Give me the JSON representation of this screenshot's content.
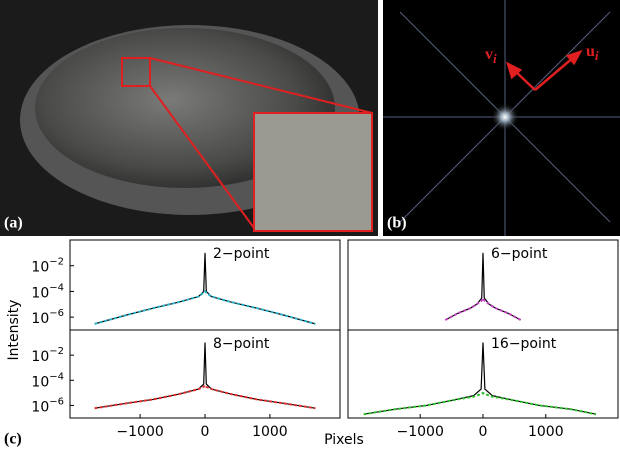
{
  "figure": {
    "panel_a": "(a)",
    "panel_b": "(b)",
    "panel_c": "(c)",
    "vector_v": "v",
    "vector_v_sub": "i",
    "vector_u": "u",
    "vector_u_sub": "i",
    "ylabel": "Intensity",
    "xlabel": "Pixels"
  },
  "chart_data": [
    {
      "type": "line",
      "title": "2−point",
      "log_y": true,
      "xlim": [
        -2080,
        2080
      ],
      "ylim": [
        1e-07,
        1
      ],
      "yticks": [
        {
          "value": 0.01,
          "label": "10",
          "exponent": "−2"
        },
        {
          "value": 0.0001,
          "label": "10",
          "exponent": "−4"
        },
        {
          "value": 1e-06,
          "label": "10",
          "exponent": "−6"
        }
      ],
      "x": [
        -1700,
        -1200,
        -800,
        -400,
        -100,
        -20,
        0,
        20,
        100,
        400,
        800,
        1200,
        1700
      ],
      "series": [
        {
          "color": "#000000",
          "values": [
            3e-07,
            1.5e-06,
            5e-06,
            1.5e-05,
            4e-05,
            0.0001,
            0.1,
            0.0001,
            4e-05,
            1.5e-05,
            5e-06,
            1.5e-06,
            3e-07
          ]
        },
        {
          "color": "#2ab0c8",
          "dashed": true,
          "values": [
            3e-07,
            1.5e-06,
            5e-06,
            1.5e-05,
            4e-05,
            8e-05,
            0.0001,
            8e-05,
            4e-05,
            1.5e-05,
            5e-06,
            1.5e-06,
            3e-07
          ]
        }
      ]
    },
    {
      "type": "line",
      "title": "6−point",
      "log_y": true,
      "xlim": [
        -2150,
        2150
      ],
      "ylim": [
        1e-07,
        1
      ],
      "x": [
        -600,
        -400,
        -200,
        -100,
        -20,
        0,
        20,
        100,
        200,
        400,
        600
      ],
      "series": [
        {
          "color": "#000000",
          "values": [
            6e-07,
            2e-06,
            5e-06,
            1e-05,
            3e-05,
            0.1,
            3e-05,
            1e-05,
            5e-06,
            2e-06,
            6e-07
          ]
        },
        {
          "color": "#c040c0",
          "dashed": true,
          "values": [
            6e-07,
            2e-06,
            5e-06,
            1e-05,
            2e-05,
            3e-05,
            2e-05,
            1e-05,
            5e-06,
            2e-06,
            6e-07
          ]
        }
      ]
    },
    {
      "type": "line",
      "title": "8−point",
      "log_y": true,
      "xlim": [
        -2080,
        2080
      ],
      "ylim": [
        1e-07,
        1
      ],
      "yticks": [
        {
          "value": 0.01,
          "label": "10",
          "exponent": "−2"
        },
        {
          "value": 0.0001,
          "label": "10",
          "exponent": "−4"
        },
        {
          "value": 1e-06,
          "label": "10",
          "exponent": "−6"
        }
      ],
      "xticks": [
        {
          "value": -1000,
          "label": "−1000"
        },
        0,
        1000
      ],
      "x": [
        -1700,
        -1200,
        -800,
        -400,
        -100,
        -20,
        0,
        20,
        100,
        400,
        800,
        1200,
        1700
      ],
      "series": [
        {
          "color": "#000000",
          "values": [
            6e-07,
            1.5e-06,
            3e-06,
            8e-06,
            2e-05,
            5e-05,
            0.1,
            5e-05,
            2e-05,
            8e-06,
            3e-06,
            1.5e-06,
            6e-07
          ]
        },
        {
          "color": "#e03030",
          "dashed": true,
          "values": [
            6e-07,
            1.5e-06,
            3e-06,
            8e-06,
            2e-05,
            3e-05,
            4e-05,
            3e-05,
            2e-05,
            8e-06,
            3e-06,
            1.5e-06,
            6e-07
          ]
        }
      ]
    },
    {
      "type": "line",
      "title": "16−point",
      "log_y": true,
      "xlim": [
        -2150,
        2150
      ],
      "ylim": [
        1e-07,
        1
      ],
      "xticks": [
        {
          "value": -1000,
          "label": "−1000"
        },
        0,
        1000
      ],
      "x": [
        -1900,
        -1400,
        -900,
        -500,
        -150,
        -30,
        0,
        30,
        150,
        500,
        900,
        1400,
        1800
      ],
      "series": [
        {
          "color": "#000000",
          "values": [
            2e-07,
            5e-07,
            1e-06,
            2.5e-06,
            6e-06,
            2e-05,
            0.1,
            2e-05,
            6e-06,
            2.5e-06,
            1e-06,
            5e-07,
            2e-07
          ]
        },
        {
          "color": "#30c030",
          "dashed": true,
          "values": [
            2e-07,
            5e-07,
            1e-06,
            2.5e-06,
            5e-06,
            8e-06,
            1e-05,
            8e-06,
            5e-06,
            2.5e-06,
            1e-06,
            5e-07,
            2e-07
          ]
        }
      ]
    }
  ]
}
